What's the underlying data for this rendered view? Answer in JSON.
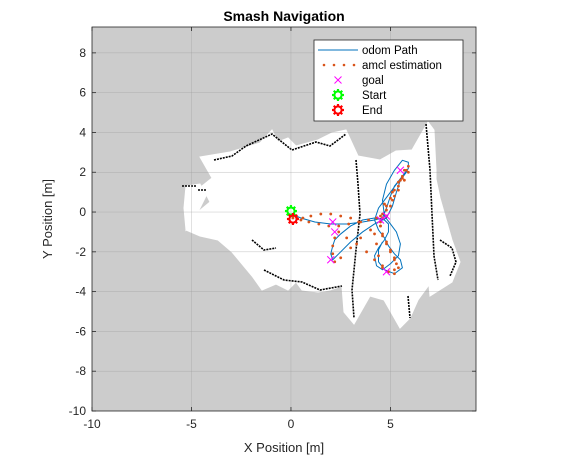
{
  "chart_data": {
    "type": "line",
    "title": "Smash Navigation",
    "xlabel": "X Position [m]",
    "ylabel": "Y Position [m]",
    "xlim": [
      -10,
      9.3
    ],
    "ylim": [
      -10,
      9.3
    ],
    "xticks": [
      -10,
      -5,
      0,
      5
    ],
    "yticks": [
      -10,
      -8,
      -6,
      -4,
      -2,
      0,
      2,
      4,
      6,
      8
    ],
    "grid": true,
    "legend_position": "top-right",
    "background_color": "#cccccc",
    "map_free_color": "#ffffff",
    "map_wall_color": "#000000",
    "legend": [
      {
        "label": "odom Path",
        "style": "line",
        "color": "#0072bd"
      },
      {
        "label": "amcl estimation",
        "style": "dots",
        "color": "#d95319"
      },
      {
        "label": "goal",
        "style": "x",
        "color": "#ff00ff"
      },
      {
        "label": "Start",
        "style": "gear",
        "color": "#00ff00"
      },
      {
        "label": "End",
        "style": "gear",
        "color": "#ff0000"
      }
    ],
    "series": [
      {
        "name": "odom Path",
        "x": [
          0,
          0.5,
          1.2,
          2.0,
          2.8,
          3.6,
          4.2,
          4.6,
          4.8,
          5.0,
          5.2,
          5.6,
          5.9,
          5.9,
          5.6,
          5.2,
          4.8,
          4.6,
          4.7,
          5.0,
          5.3,
          5.5,
          5.4,
          5.0,
          4.6,
          4.3,
          4.2,
          4.4,
          4.7,
          4.9,
          4.9,
          4.7,
          4.2,
          3.6,
          3.0,
          2.5,
          2.2,
          2.1,
          2.0,
          2.1,
          2.4,
          3.0,
          3.6,
          4.2,
          4.8,
          5.1,
          5.3,
          5.5,
          5.8,
          5.9,
          5.6,
          5.0,
          4.4,
          4.2,
          4.4,
          4.7,
          4.9,
          5.2,
          5.5,
          5.6,
          5.2,
          4.7,
          4.4,
          4.4,
          4.6
        ],
        "y": [
          -0.1,
          -0.3,
          -0.5,
          -0.6,
          -0.6,
          -0.5,
          -0.4,
          -0.3,
          0.2,
          0.8,
          1.3,
          1.8,
          2.2,
          2.5,
          2.6,
          2.1,
          1.4,
          0.6,
          -0.2,
          -0.6,
          -1.0,
          -1.6,
          -2.2,
          -2.6,
          -2.9,
          -2.7,
          -2.2,
          -1.8,
          -1.4,
          -1.0,
          -0.6,
          -0.4,
          -0.3,
          -0.4,
          -0.7,
          -1.1,
          -1.4,
          -1.7,
          -2.1,
          -2.4,
          -2.1,
          -1.5,
          -1.0,
          -0.6,
          -0.3,
          0.3,
          1.0,
          1.6,
          2.0,
          2.2,
          1.8,
          1.0,
          0.2,
          -0.4,
          -0.9,
          -1.3,
          -1.7,
          -2.1,
          -2.4,
          -2.8,
          -3.1,
          -2.9,
          -2.5,
          -1.9,
          -1.5
        ]
      },
      {
        "name": "amcl estimation",
        "x": [
          0.1,
          0.5,
          0.9,
          1.4,
          1.9,
          2.4,
          2.9,
          3.4,
          3.9,
          4.3,
          4.6,
          4.8,
          5.0,
          5.2,
          5.4,
          5.6,
          5.8,
          5.9,
          5.9,
          5.7,
          5.4,
          5.1,
          4.8,
          4.6,
          4.5,
          4.6,
          4.8,
          5.0,
          5.2,
          5.3,
          5.2,
          4.9,
          4.6,
          4.2,
          3.8,
          3.3,
          2.8,
          2.4,
          2.2,
          2.1,
          2.1,
          2.2,
          2.5,
          3.0,
          3.5,
          4.0,
          4.5,
          4.8,
          5.0,
          5.2,
          5.4,
          5.6,
          5.7,
          5.5,
          5.1,
          4.7,
          4.5,
          4.5,
          4.6,
          4.8,
          5.0,
          5.2,
          5.4,
          5.2,
          4.9,
          4.6,
          4.4,
          4.3,
          4.2,
          3.5,
          3.0,
          2.5,
          2.0,
          1.5,
          1.0,
          0.6,
          0.3,
          0.1
        ],
        "y": [
          -0.2,
          -0.4,
          -0.5,
          -0.6,
          -0.7,
          -0.7,
          -0.6,
          -0.5,
          -0.4,
          -0.3,
          -0.1,
          0.3,
          0.7,
          1.1,
          1.5,
          1.8,
          2.1,
          2.3,
          2.0,
          1.6,
          1.1,
          0.6,
          0.1,
          -0.3,
          -0.7,
          -1.1,
          -1.5,
          -1.9,
          -2.3,
          -2.6,
          -2.9,
          -3.0,
          -2.8,
          -2.4,
          -2.0,
          -1.6,
          -1.3,
          -1.0,
          -1.3,
          -1.7,
          -2.1,
          -2.5,
          -2.3,
          -1.8,
          -1.3,
          -0.9,
          -0.5,
          -0.2,
          0.3,
          0.8,
          1.3,
          1.7,
          2.1,
          1.6,
          1.0,
          0.4,
          -0.2,
          -0.7,
          -1.2,
          -1.6,
          -2.0,
          -2.4,
          -2.8,
          -3.1,
          -3.0,
          -2.7,
          -2.2,
          -1.6,
          -1.1,
          -0.5,
          -0.3,
          -0.2,
          -0.1,
          -0.1,
          -0.2,
          -0.3,
          -0.3,
          -0.3
        ]
      },
      {
        "name": "goal",
        "x": [
          2.1,
          2.2,
          2.0,
          4.5,
          4.8,
          5.5,
          4.8
        ],
        "y": [
          -0.5,
          -1.0,
          -2.4,
          -0.4,
          -0.2,
          2.1,
          -3.0
        ]
      },
      {
        "name": "Start",
        "x": [
          0.0
        ],
        "y": [
          0.05
        ]
      },
      {
        "name": "End",
        "x": [
          0.1
        ],
        "y": [
          -0.35
        ]
      }
    ]
  }
}
